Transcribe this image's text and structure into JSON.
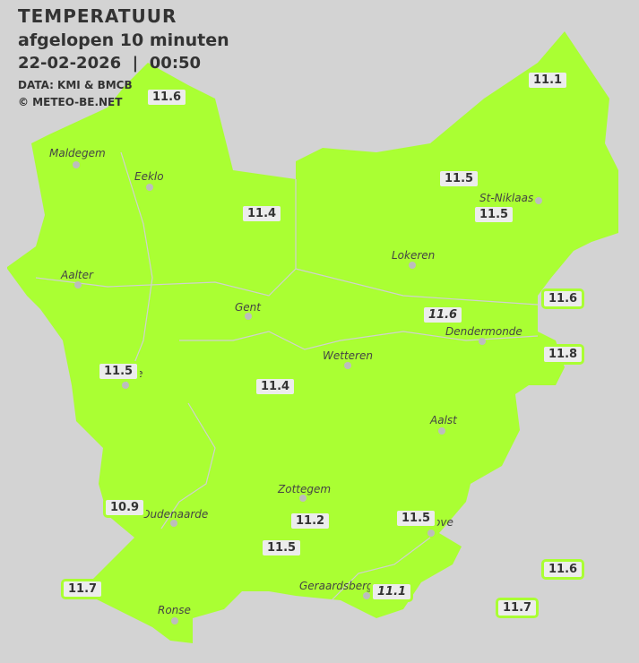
{
  "header": {
    "title": "TEMPERATUUR",
    "subtitle": "afgelopen 10 minuten",
    "datetime": "22-02-2026  |  00:50",
    "source": "DATA: KMI & BMCB",
    "copyright": "© METEO-BE.NET"
  },
  "colors": {
    "land": "#aaff33",
    "background": "#d3d3d3",
    "label_bg": "#ececec"
  },
  "towns": [
    "Maldegem",
    "Eeklo",
    "St-Niklaas",
    "Lokeren",
    "Aalter",
    "Gent",
    "Dendermonde",
    "Wetteren",
    "Aalst",
    "Zottegem",
    "Oudenaarde",
    "Geraardsbergen",
    "Ronse",
    "e",
    "ove"
  ],
  "readings": [
    {
      "value": "11.6",
      "italic": false
    },
    {
      "value": "11.1",
      "italic": false
    },
    {
      "value": "11.5",
      "italic": false
    },
    {
      "value": "11.4",
      "italic": false
    },
    {
      "value": "11.5",
      "italic": false
    },
    {
      "value": "11.6",
      "italic": false
    },
    {
      "value": "11.6",
      "italic": true
    },
    {
      "value": "11.8",
      "italic": false
    },
    {
      "value": "11.5",
      "italic": false
    },
    {
      "value": "11.4",
      "italic": false
    },
    {
      "value": "10.9",
      "italic": false
    },
    {
      "value": "11.2",
      "italic": false
    },
    {
      "value": "11.5",
      "italic": false
    },
    {
      "value": "11.5",
      "italic": false
    },
    {
      "value": "11.6",
      "italic": false
    },
    {
      "value": "11.7",
      "italic": false
    },
    {
      "value": "11.1",
      "italic": true
    },
    {
      "value": "11.7",
      "italic": false
    }
  ]
}
